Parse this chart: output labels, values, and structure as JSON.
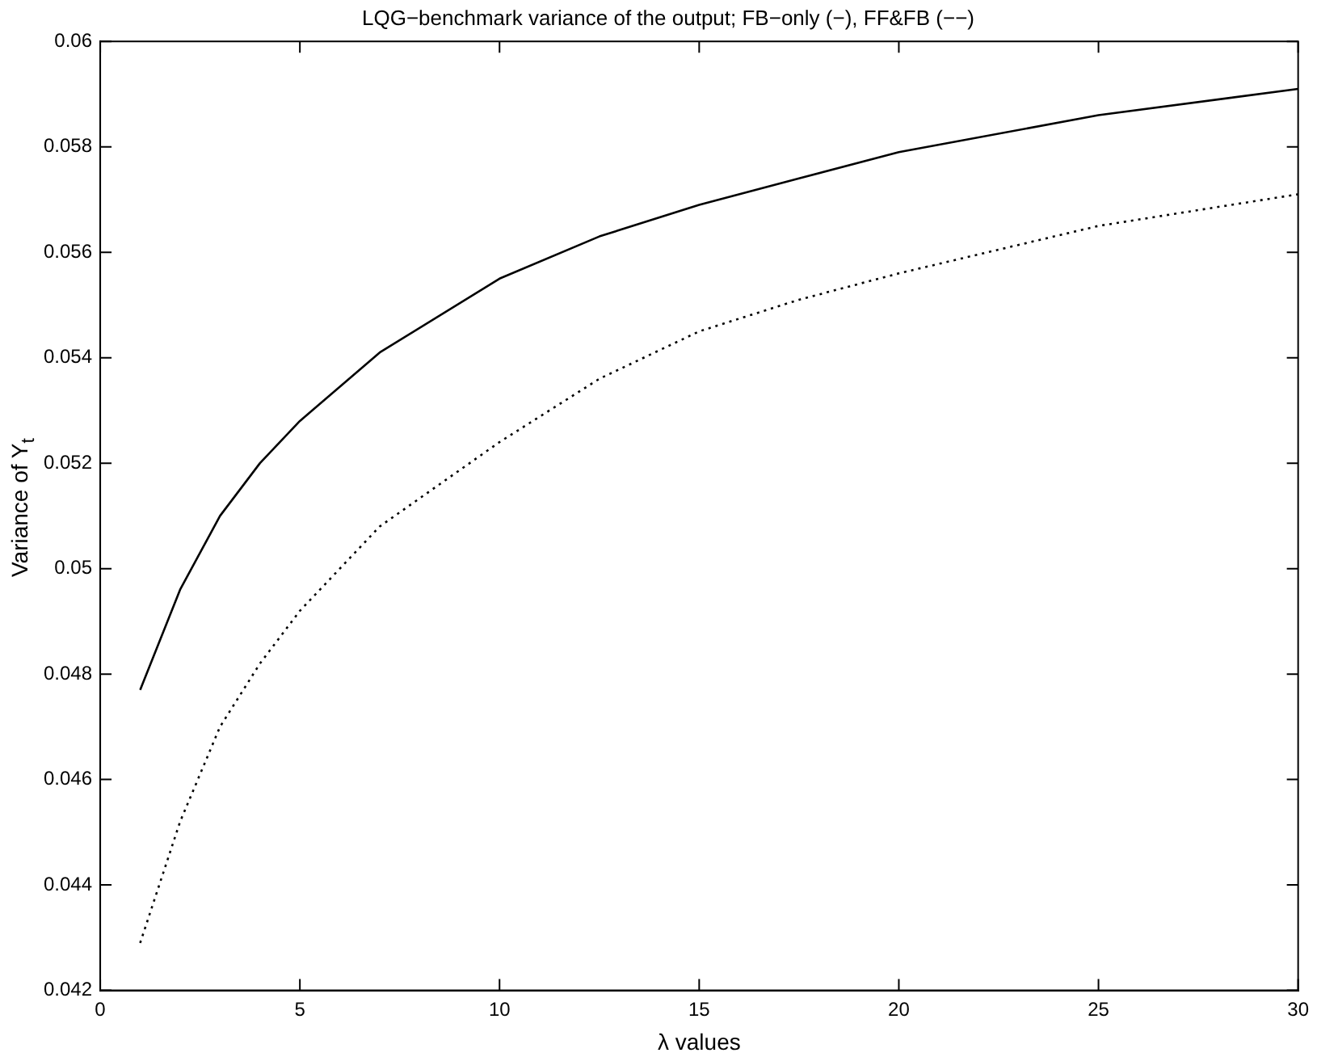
{
  "chart_data": {
    "type": "line",
    "title": "LQG−benchmark variance of the output; FB−only (−), FF&FB (−−)",
    "xlabel": "λ values",
    "ylabel": "Variance of Y$_{t}$",
    "xlim": [
      0,
      30
    ],
    "xticks": [
      0,
      5,
      10,
      15,
      20,
      25,
      30
    ],
    "ylim": [
      0.042,
      0.06
    ],
    "yticks": [
      0.042,
      0.044,
      0.046,
      0.048,
      0.05,
      0.052,
      0.054,
      0.056,
      0.058,
      0.06
    ],
    "grid": false,
    "legend": false,
    "marker": "none",
    "series": [
      {
        "color": "#000000",
        "line_style": "solid",
        "x": [
          1,
          2,
          3,
          4,
          5,
          7,
          10,
          12.5,
          15,
          17.5,
          20,
          25,
          30
        ],
        "values": [
          0.0477,
          0.0496,
          0.051,
          0.052,
          0.0528,
          0.0541,
          0.0555,
          0.0563,
          0.0569,
          0.0574,
          0.0579,
          0.0586,
          0.0591
        ]
      },
      {
        "color": "#000000",
        "line_style": "dotted",
        "x": [
          1,
          2,
          3,
          4,
          5,
          7,
          10,
          12.5,
          15,
          17.5,
          20,
          25,
          30
        ],
        "values": [
          0.0429,
          0.0452,
          0.047,
          0.0482,
          0.0492,
          0.0508,
          0.0524,
          0.0536,
          0.0545,
          0.0551,
          0.0556,
          0.0565,
          0.0571
        ]
      }
    ]
  }
}
